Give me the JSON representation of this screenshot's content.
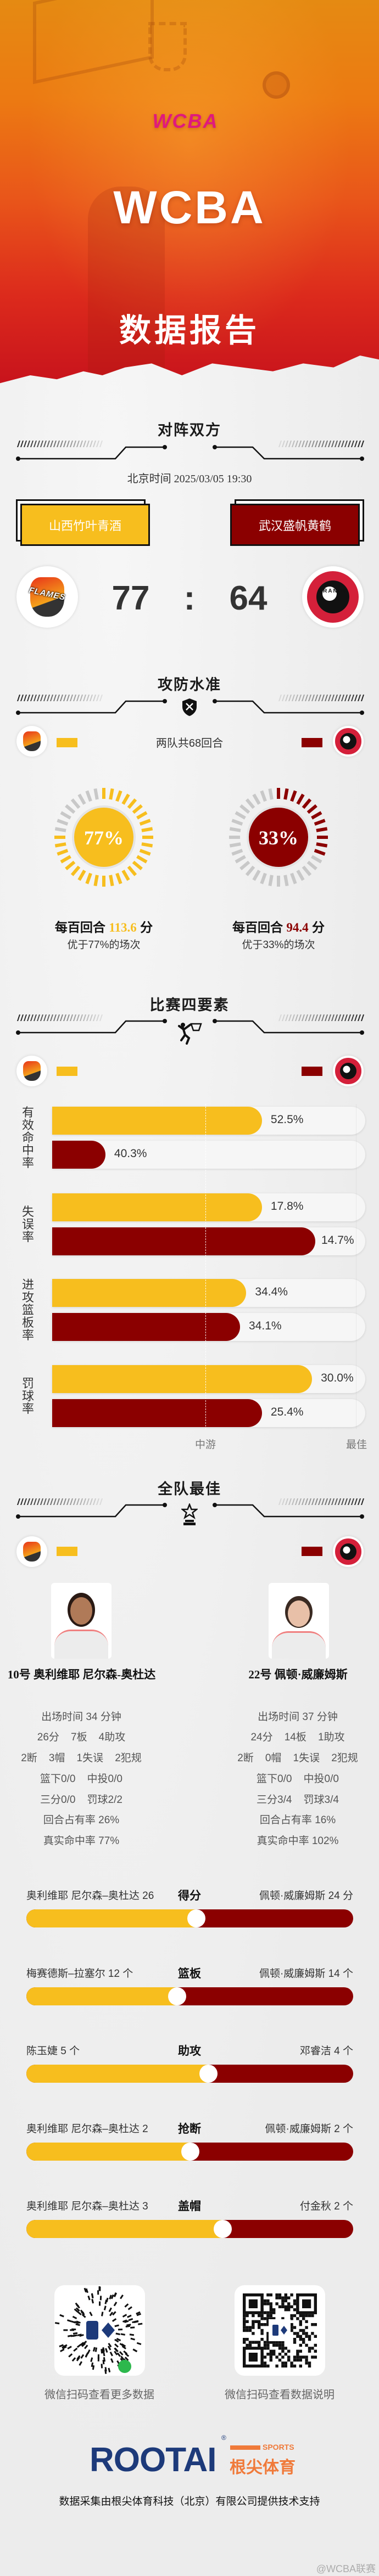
{
  "header": {
    "logo_text": "WCBA",
    "title": "WCBA",
    "subtitle": "数据报告"
  },
  "colors": {
    "home": "#F7BE1E",
    "away": "#8B0000"
  },
  "matchup": {
    "section_title": "对阵双方",
    "time": "北京时间 2025/03/05 19:30",
    "home_team": "山西竹叶青酒",
    "away_team": "武汉盛帆黄鹤",
    "home_score": "77",
    "separator": ":",
    "away_score": "64",
    "home_logo_text": "FLAMES",
    "away_logo_text": "CRANES WUHAN"
  },
  "efficiency": {
    "section_title": "攻防水准",
    "icon": "shield-swords-icon",
    "possessions": "两队共68回合",
    "home": {
      "percent": 77,
      "percent_label": "77%",
      "prefix": "每百回合",
      "value": "113.6",
      "unit": "分",
      "note": "优于77%的场次"
    },
    "away": {
      "percent": 33,
      "percent_label": "33%",
      "prefix": "每百回合",
      "value": "94.4",
      "unit": "分",
      "note": "优于33%的场次"
    }
  },
  "four_factors": {
    "section_title": "比赛四要素",
    "icon": "basketball-dunk-icon",
    "axis": {
      "mid_label": "中游",
      "mid_level": 0.49,
      "best_label": "最佳",
      "best_level": 0.97
    },
    "factors": [
      {
        "label": "有效命中率",
        "home": {
          "value": "52.5%",
          "level": 0.67
        },
        "away": {
          "value": "40.3%",
          "level": 0.17
        }
      },
      {
        "label": "失误率",
        "home": {
          "value": "17.8%",
          "level": 0.67
        },
        "away": {
          "value": "14.7%",
          "level": 0.84
        }
      },
      {
        "label": "进攻篮板率",
        "home": {
          "value": "34.4%",
          "level": 0.62
        },
        "away": {
          "value": "34.1%",
          "level": 0.6
        }
      },
      {
        "label": "罚球率",
        "home": {
          "value": "30.0%",
          "level": 0.83
        },
        "away": {
          "value": "25.4%",
          "level": 0.67
        }
      }
    ]
  },
  "best_players": {
    "section_title": "全队最佳",
    "icon": "star-trophy-icon",
    "home": {
      "name": "10号 奥利维耶 尼尔森-奥杜达",
      "stats": [
        "出场时间 34 分钟",
        "26分    7板    4助攻",
        "2断    3帽    1失误    2犯规",
        "篮下0/0    中投0/0",
        "三分0/0    罚球2/2",
        "回合占有率 26%",
        "真实命中率 77%"
      ]
    },
    "away": {
      "name": "22号 佩顿·威廉姆斯",
      "stats": [
        "出场时间 37 分钟",
        "24分    14板    1助攻",
        "2断    0帽    1失误    2犯规",
        "篮下0/0    中投0/0",
        "三分3/4    罚球3/4",
        "回合占有率 16%",
        "真实命中率 102%"
      ]
    }
  },
  "leaders": [
    {
      "stat": "得分",
      "home": "奥利维耶 尼尔森–奥杜达 26",
      "away": "佩顿·威廉姆斯 24 分",
      "home_share": 0.52
    },
    {
      "stat": "篮板",
      "home": "梅赛德斯–拉塞尔 12 个",
      "away": "佩顿·威廉姆斯 14 个",
      "home_share": 0.46
    },
    {
      "stat": "助攻",
      "home": "陈玉婕 5 个",
      "away": "邓睿洁 4 个",
      "home_share": 0.556
    },
    {
      "stat": "抢断",
      "home": "奥利维耶 尼尔森–奥杜达 2",
      "away": "佩顿·威廉姆斯 2 个",
      "home_share": 0.5
    },
    {
      "stat": "盖帽",
      "home": "奥利维耶 尼尔森–奥杜达 3",
      "away": "付金秋 2 个",
      "home_share": 0.6
    }
  ],
  "footer": {
    "qr_left_caption": "微信扫码查看更多数据",
    "qr_right_caption": "微信扫码查看数据说明",
    "brand": "ROOTAI",
    "brand_registered": "®",
    "brand_sports": "SPORTS",
    "brand_cn": "根尖体育",
    "credit": "数据采集由根尖体育科技（北京）有限公司提供技术支持",
    "watermark": "@WCBA联赛"
  }
}
